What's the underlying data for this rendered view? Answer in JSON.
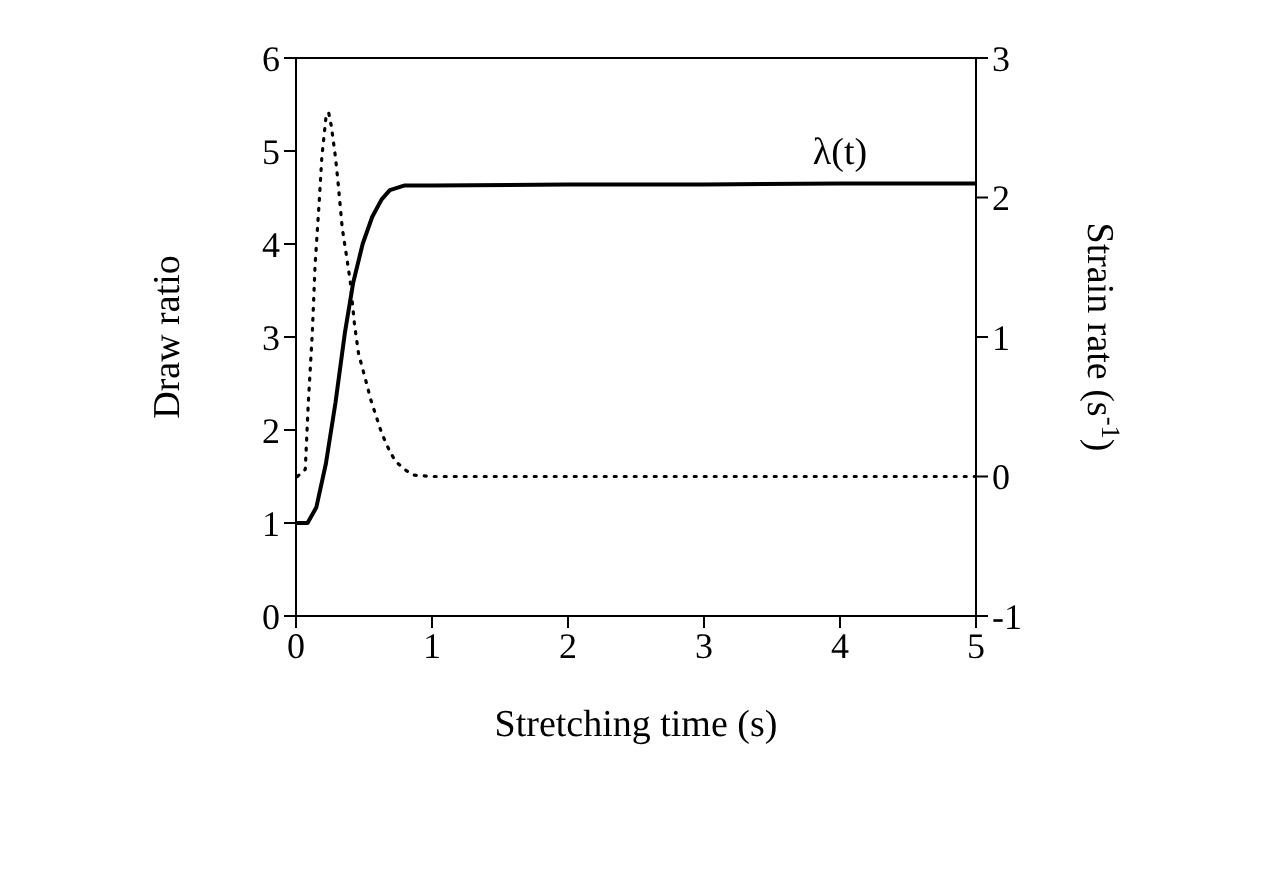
{
  "chart_data": {
    "type": "line",
    "xlabel": "Stretching time (s)",
    "ylabel": "Draw ratio",
    "y2label": "Strain rate (s$^{-1}$)",
    "xlim": [
      0,
      5
    ],
    "xticks": [
      0,
      1,
      2,
      3,
      4,
      5
    ],
    "ylim": [
      0,
      6
    ],
    "yticks": [
      0,
      1,
      2,
      3,
      4,
      5,
      6
    ],
    "y2lim": [
      -1,
      3
    ],
    "y2ticks": [
      -1,
      0,
      1,
      2,
      3
    ],
    "series": [
      {
        "name": "λ(t)",
        "color": "#000000",
        "line_style": "solid",
        "marker": "none",
        "x": [
          0,
          0.085,
          0.15,
          0.22,
          0.29,
          0.36,
          0.42,
          0.49,
          0.56,
          0.63,
          0.69,
          0.8,
          1.0,
          2.0,
          3.0,
          4.0,
          5.0
        ],
        "values": [
          1.0,
          1.0,
          1.17,
          1.64,
          2.29,
          3.05,
          3.58,
          4.0,
          4.29,
          4.48,
          4.58,
          4.63,
          4.63,
          4.64,
          4.64,
          4.65,
          4.65
        ]
      },
      {
        "axis": "y2",
        "color": "#000000",
        "line_style": "dotted",
        "marker": "none",
        "x": [
          0.01,
          0.068,
          0.09,
          0.12,
          0.14,
          0.17,
          0.19,
          0.22,
          0.24,
          0.26,
          0.29,
          0.31,
          0.34,
          0.37,
          0.4,
          0.43,
          0.46,
          0.51,
          0.55,
          0.59,
          0.63,
          0.68,
          0.73,
          0.8,
          0.86,
          1.0,
          1.5,
          2.0,
          2.5,
          3.0,
          3.5,
          4.0,
          4.5,
          5.0
        ],
        "values": [
          0.0,
          0.05,
          0.52,
          1.03,
          1.51,
          1.96,
          2.29,
          2.57,
          2.61,
          2.51,
          2.29,
          2.1,
          1.78,
          1.59,
          1.39,
          1.09,
          0.88,
          0.7,
          0.55,
          0.43,
          0.31,
          0.2,
          0.11,
          0.05,
          0.01,
          0.0,
          0.0,
          0.0,
          0.0,
          0.0,
          0.0,
          0.0,
          0.0,
          0.0
        ]
      }
    ]
  }
}
